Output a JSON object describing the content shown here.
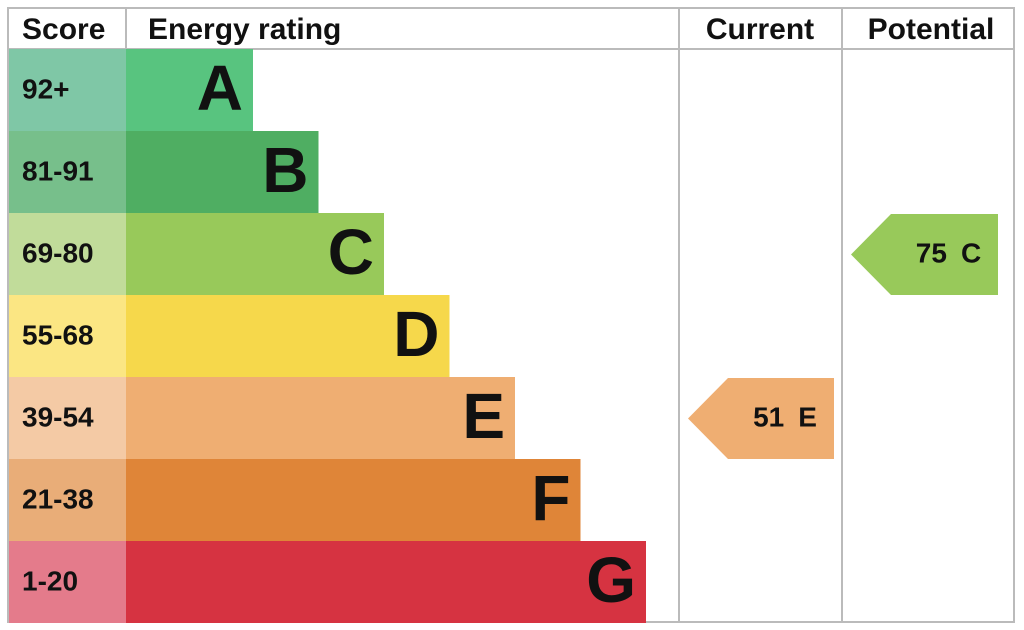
{
  "header": {
    "score": "Score",
    "rating": "Energy rating",
    "current": "Current",
    "potential": "Potential"
  },
  "bands": [
    {
      "score": "92+",
      "letter": "A",
      "color": "#58c47f",
      "score_color": "#7fc7a6"
    },
    {
      "score": "81-91",
      "letter": "B",
      "color": "#4fae62",
      "score_color": "#77bf8b"
    },
    {
      "score": "69-80",
      "letter": "C",
      "color": "#98c95a",
      "score_color": "#c1dc9a"
    },
    {
      "score": "55-68",
      "letter": "D",
      "color": "#f6d84b",
      "score_color": "#fbe683"
    },
    {
      "score": "39-54",
      "letter": "E",
      "color": "#efae72",
      "score_color": "#f4caa5"
    },
    {
      "score": "21-38",
      "letter": "F",
      "color": "#df8538",
      "score_color": "#e9ad78"
    },
    {
      "score": "1-20",
      "letter": "G",
      "color": "#d63341",
      "score_color": "#e47b8b"
    }
  ],
  "current": {
    "score": 51,
    "rating": "E"
  },
  "potential": {
    "score": 75,
    "rating": "C"
  }
}
